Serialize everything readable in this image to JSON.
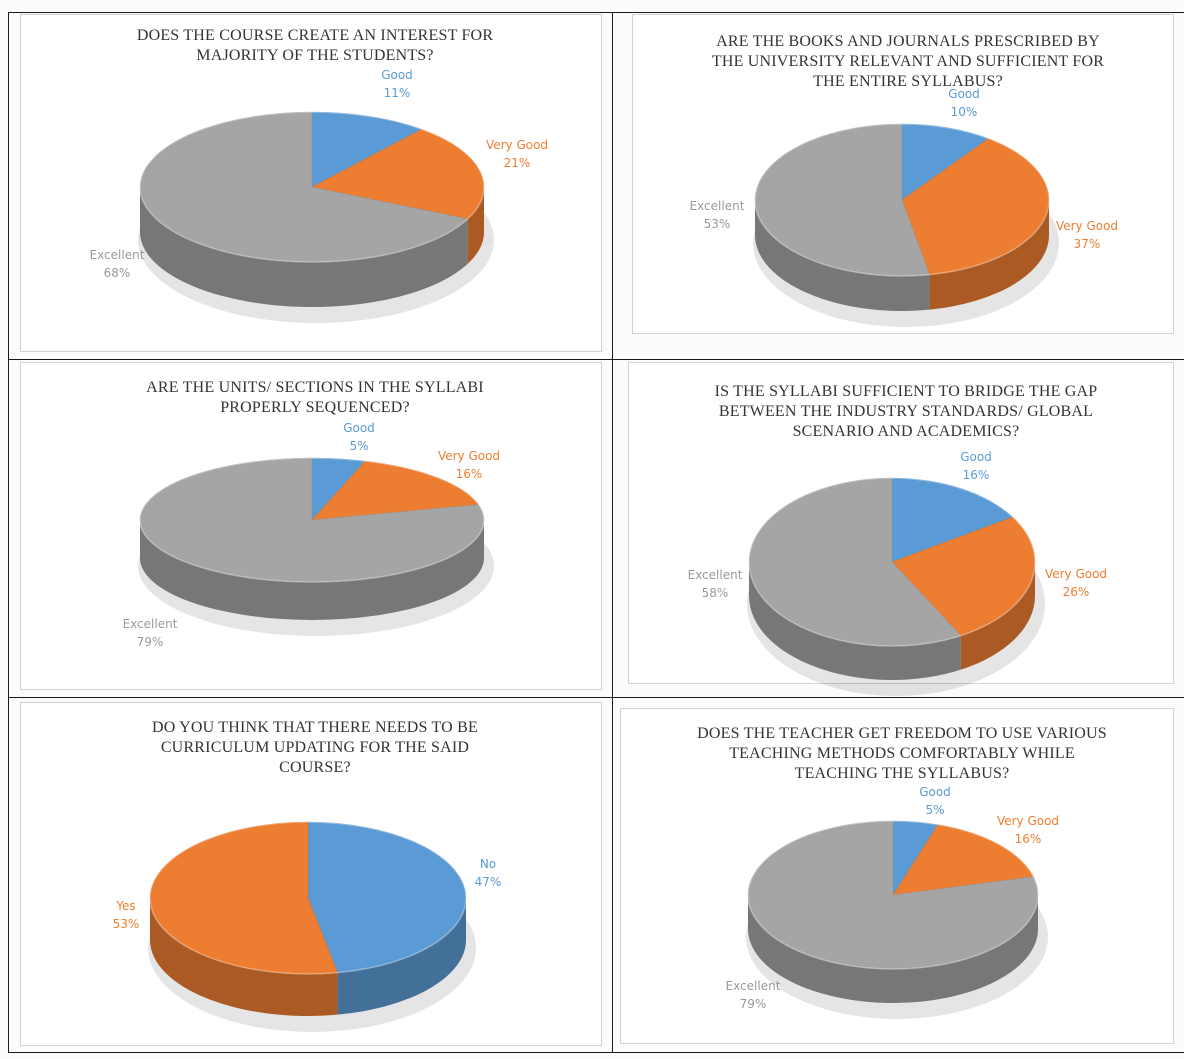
{
  "chart_data": [
    {
      "type": "pie",
      "title": "DOES THE COURSE CREATE AN INTEREST FOR MAJORITY OF THE STUDENTS?",
      "slices": [
        {
          "label": "Good",
          "percent_text": "11%",
          "value": 11,
          "color": "#5b9bd5"
        },
        {
          "label": "Very Good",
          "percent_text": "21%",
          "value": 21,
          "color": "#ed7d31"
        },
        {
          "label": "Excellent",
          "percent_text": "68%",
          "value": 68,
          "color": "#a5a5a5"
        }
      ]
    },
    {
      "type": "pie",
      "title": "ARE THE BOOKS AND JOURNALS PRESCRIBED BY THE UNIVERSITY RELEVANT AND SUFFICIENT FOR THE ENTIRE SYLLABUS?",
      "slices": [
        {
          "label": "Good",
          "percent_text": "10%",
          "value": 10,
          "color": "#5b9bd5"
        },
        {
          "label": "Very Good",
          "percent_text": "37%",
          "value": 37,
          "color": "#ed7d31"
        },
        {
          "label": "Excellent",
          "percent_text": "53%",
          "value": 53,
          "color": "#a5a5a5"
        }
      ]
    },
    {
      "type": "pie",
      "title": "ARE THE UNITS/ SECTIONS IN THE SYLLABI PROPERLY SEQUENCED?",
      "slices": [
        {
          "label": "Good",
          "percent_text": "5%",
          "value": 5,
          "color": "#5b9bd5"
        },
        {
          "label": "Very Good",
          "percent_text": "16%",
          "value": 16,
          "color": "#ed7d31"
        },
        {
          "label": "Excellent",
          "percent_text": "79%",
          "value": 79,
          "color": "#a5a5a5"
        }
      ]
    },
    {
      "type": "pie",
      "title": "IS THE SYLLABI SUFFICIENT TO BRIDGE THE GAP BETWEEN THE INDUSTRY STANDARDS/ GLOBAL SCENARIO AND ACADEMICS?",
      "slices": [
        {
          "label": "Good",
          "percent_text": "16%",
          "value": 16,
          "color": "#5b9bd5"
        },
        {
          "label": "Very Good",
          "percent_text": "26%",
          "value": 26,
          "color": "#ed7d31"
        },
        {
          "label": "Excellent",
          "percent_text": "58%",
          "value": 58,
          "color": "#a5a5a5"
        }
      ]
    },
    {
      "type": "pie",
      "title": "DO YOU THINK THAT THERE NEEDS TO BE CURRICULUM UPDATING FOR THE SAID COURSE?",
      "slices": [
        {
          "label": "No",
          "percent_text": "47%",
          "value": 47,
          "color": "#5b9bd5"
        },
        {
          "label": "Yes",
          "percent_text": "53%",
          "value": 53,
          "color": "#ed7d31"
        }
      ]
    },
    {
      "type": "pie",
      "title": "DOES THE TEACHER GET FREEDOM TO USE VARIOUS TEACHING METHODS COMFORTABLY WHILE TEACHING THE SYLLABUS?",
      "slices": [
        {
          "label": "Good",
          "percent_text": "5%",
          "value": 5,
          "color": "#5b9bd5"
        },
        {
          "label": "Very Good",
          "percent_text": "16%",
          "value": 16,
          "color": "#ed7d31"
        },
        {
          "label": "Excellent",
          "percent_text": "79%",
          "value": 79,
          "color": "#a5a5a5"
        }
      ]
    }
  ]
}
